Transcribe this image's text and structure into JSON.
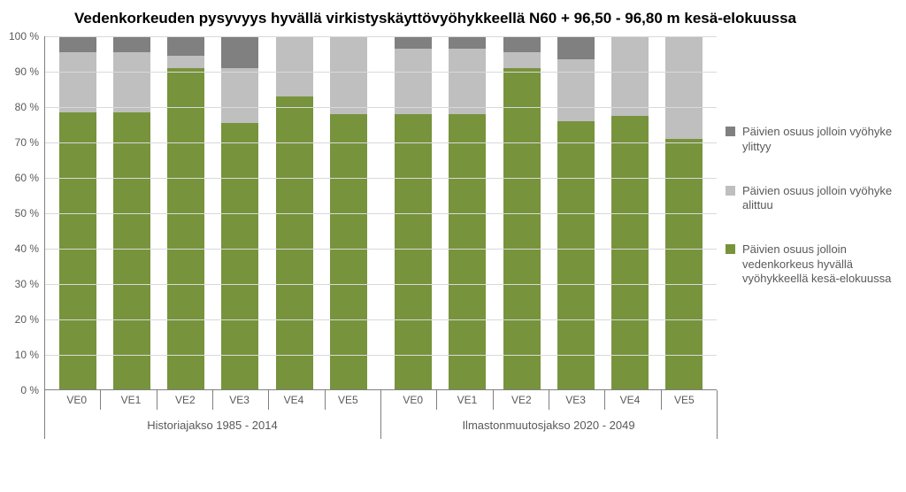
{
  "title": "Vedenkorkeuden pysyvyys hyvällä virkistyskäyttövyöhykkeellä N60 + 96,50 - 96,80 m kesä-elokuussa",
  "y_axis": {
    "min": 0,
    "max": 100,
    "step": 10,
    "suffix": " %"
  },
  "colors": {
    "seg_over": "#808080",
    "seg_under": "#bfbfbf",
    "seg_good": "#77933c",
    "gridline": "#d9d9d9",
    "axis": "#808080",
    "text": "#595959",
    "background": "#ffffff"
  },
  "groups": [
    {
      "name": "Historiajakso 1985 - 2014",
      "categories": [
        "VE0",
        "VE1",
        "VE2",
        "VE3",
        "VE4",
        "VE5"
      ],
      "data": [
        {
          "good": 78.5,
          "under": 17.0,
          "over": 4.5
        },
        {
          "good": 78.5,
          "under": 17.0,
          "over": 4.5
        },
        {
          "good": 91.0,
          "under": 3.5,
          "over": 5.5
        },
        {
          "good": 75.5,
          "under": 15.5,
          "over": 9.0
        },
        {
          "good": 83.0,
          "under": 17.0,
          "over": 0.0
        },
        {
          "good": 78.0,
          "under": 22.0,
          "over": 0.0
        }
      ]
    },
    {
      "name": "Ilmastonmuutosjakso 2020 - 2049",
      "categories": [
        "VE0",
        "VE1",
        "VE2",
        "VE3",
        "VE4",
        "VE5"
      ],
      "data": [
        {
          "good": 78.0,
          "under": 18.5,
          "over": 3.5
        },
        {
          "good": 78.0,
          "under": 18.5,
          "over": 3.5
        },
        {
          "good": 91.0,
          "under": 4.5,
          "over": 4.5
        },
        {
          "good": 76.0,
          "under": 17.5,
          "over": 6.5
        },
        {
          "good": 77.5,
          "under": 22.5,
          "over": 0.0
        },
        {
          "good": 71.0,
          "under": 29.0,
          "over": 0.0
        }
      ]
    }
  ],
  "legend": [
    {
      "key": "seg_over",
      "label": "Päivien osuus jolloin vyöhyke ylittyy"
    },
    {
      "key": "seg_under",
      "label": "Päivien osuus jolloin vyöhyke alittuu"
    },
    {
      "key": "seg_good",
      "label": "Päivien osuus jolloin vedenkorkeus hyvällä vyöhykkeellä kesä-elokuussa"
    }
  ],
  "typography": {
    "title_fontsize": 17,
    "axis_fontsize": 12,
    "legend_fontsize": 13
  },
  "chart_type": "stacked_bar_100pct"
}
